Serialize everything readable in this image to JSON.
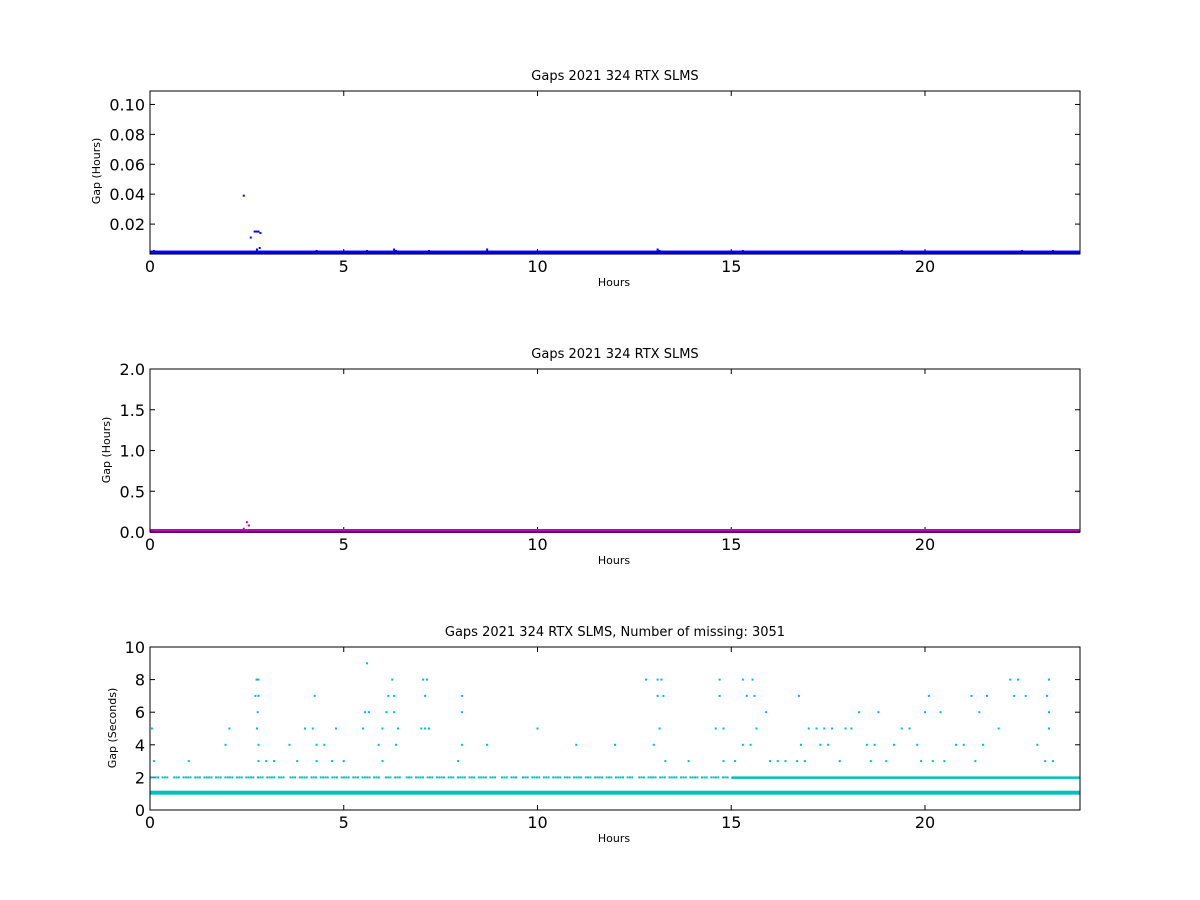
{
  "chart_data": [
    {
      "type": "scatter",
      "title": "Gaps 2021 324 RTX  SLMS",
      "xlabel": "Hours",
      "ylabel": "Gap (Hours)",
      "xlim": [
        0,
        24
      ],
      "ylim": [
        0,
        0.109
      ],
      "xticks": [
        "0",
        "5",
        "10",
        "15",
        "20"
      ],
      "yticks": [
        {
          "v": 0.02,
          "label": "0.02"
        },
        {
          "v": 0.04,
          "label": "0.04"
        },
        {
          "v": 0.06,
          "label": "0.06"
        },
        {
          "v": 0.08,
          "label": "0.08"
        },
        {
          "v": 0.1,
          "label": "0.10"
        }
      ],
      "color": "#0000ff",
      "series": [
        {
          "baseline_y": 0.0003,
          "points": [
            [
              2.42,
              0.039
            ],
            [
              2.6,
              0.011
            ],
            [
              2.7,
              0.015
            ],
            [
              2.75,
              0.015
            ],
            [
              2.8,
              0.015
            ],
            [
              2.85,
              0.014
            ],
            [
              2.83,
              0.004
            ],
            [
              2.76,
              0.003
            ],
            [
              6.3,
              0.003
            ],
            [
              6.35,
              0.002
            ],
            [
              8.7,
              0.003
            ],
            [
              13.1,
              0.003
            ],
            [
              13.15,
              0.002
            ],
            [
              23.3,
              0.002
            ],
            [
              0.1,
              0.002
            ],
            [
              4.3,
              0.002
            ],
            [
              5.6,
              0.002
            ],
            [
              7.2,
              0.002
            ],
            [
              15.3,
              0.002
            ],
            [
              19.4,
              0.002
            ],
            [
              22.5,
              0.002
            ]
          ]
        }
      ]
    },
    {
      "type": "scatter",
      "title": "Gaps 2021 324 RTX  SLMS",
      "xlabel": "Hours",
      "ylabel": "Gap (Hours)",
      "xlim": [
        0,
        24
      ],
      "ylim": [
        0,
        2.0
      ],
      "xticks": [
        "0",
        "5",
        "10",
        "15",
        "20"
      ],
      "yticks": [
        {
          "v": 0.0,
          "label": "0.0"
        },
        {
          "v": 0.5,
          "label": "0.5"
        },
        {
          "v": 1.0,
          "label": "1.0"
        },
        {
          "v": 1.5,
          "label": "1.5"
        },
        {
          "v": 2.0,
          "label": "2.0"
        }
      ],
      "color": "#bf00bf",
      "series": [
        {
          "baseline_y": 0.0,
          "points": [
            [
              2.42,
              0.04
            ],
            [
              2.5,
              0.12
            ],
            [
              2.55,
              0.08
            ],
            [
              2.45,
              0.02
            ]
          ]
        }
      ]
    },
    {
      "type": "scatter",
      "title": "Gaps 2021 324 RTX  SLMS, Number of missing: 3051",
      "xlabel": "Hours",
      "ylabel": "Gap (Seconds)",
      "xlim": [
        0,
        24
      ],
      "ylim": [
        0,
        10
      ],
      "xticks": [
        "0",
        "5",
        "10",
        "15",
        "20"
      ],
      "yticks": [
        {
          "v": 0,
          "label": "0"
        },
        {
          "v": 2,
          "label": "2"
        },
        {
          "v": 4,
          "label": "4"
        },
        {
          "v": 6,
          "label": "6"
        },
        {
          "v": 8,
          "label": "8"
        },
        {
          "v": 10,
          "label": "10"
        }
      ],
      "color": "#00bfbf",
      "series": [
        {
          "baseline_y": 1,
          "band_y": 2,
          "band_start": 15.0,
          "points": [
            [
              0.05,
              5
            ],
            [
              0.1,
              3
            ],
            [
              1.0,
              3
            ],
            [
              1.95,
              4
            ],
            [
              2.05,
              5
            ],
            [
              2.75,
              8
            ],
            [
              2.8,
              8
            ],
            [
              2.72,
              7
            ],
            [
              2.8,
              7
            ],
            [
              2.78,
              6
            ],
            [
              2.76,
              5
            ],
            [
              2.8,
              4
            ],
            [
              2.8,
              3
            ],
            [
              3.0,
              3
            ],
            [
              3.2,
              3
            ],
            [
              3.6,
              4
            ],
            [
              3.8,
              3
            ],
            [
              4.0,
              5
            ],
            [
              4.2,
              5
            ],
            [
              4.25,
              7
            ],
            [
              4.3,
              4
            ],
            [
              4.5,
              4
            ],
            [
              4.3,
              3
            ],
            [
              4.7,
              3
            ],
            [
              4.8,
              5
            ],
            [
              5.0,
              3
            ],
            [
              5.5,
              5
            ],
            [
              5.6,
              9
            ],
            [
              5.55,
              6
            ],
            [
              5.65,
              6
            ],
            [
              5.9,
              4
            ],
            [
              6.0,
              5
            ],
            [
              6.0,
              3
            ],
            [
              6.1,
              6
            ],
            [
              6.15,
              7
            ],
            [
              6.25,
              8
            ],
            [
              6.3,
              7
            ],
            [
              6.35,
              4
            ],
            [
              6.4,
              5
            ],
            [
              6.3,
              6
            ],
            [
              7.05,
              8
            ],
            [
              7.1,
              7
            ],
            [
              7.15,
              8
            ],
            [
              7.1,
              5
            ],
            [
              7.0,
              5
            ],
            [
              7.2,
              5
            ],
            [
              7.95,
              3
            ],
            [
              8.05,
              7
            ],
            [
              8.05,
              6
            ],
            [
              8.05,
              4
            ],
            [
              8.7,
              4
            ],
            [
              10.0,
              5
            ],
            [
              11.0,
              4
            ],
            [
              12.0,
              4
            ],
            [
              12.8,
              8
            ],
            [
              13.0,
              4
            ],
            [
              13.1,
              8
            ],
            [
              13.2,
              8
            ],
            [
              13.1,
              7
            ],
            [
              13.25,
              7
            ],
            [
              13.15,
              5
            ],
            [
              13.3,
              3
            ],
            [
              13.9,
              3
            ],
            [
              14.7,
              8
            ],
            [
              14.7,
              7
            ],
            [
              14.6,
              5
            ],
            [
              14.8,
              5
            ],
            [
              14.8,
              3
            ],
            [
              15.1,
              3
            ],
            [
              15.3,
              8
            ],
            [
              15.55,
              8
            ],
            [
              15.4,
              7
            ],
            [
              15.6,
              7
            ],
            [
              15.3,
              4
            ],
            [
              15.5,
              4
            ],
            [
              15.65,
              5
            ],
            [
              15.9,
              6
            ],
            [
              16.0,
              3
            ],
            [
              16.2,
              3
            ],
            [
              16.4,
              3
            ],
            [
              16.75,
              7
            ],
            [
              16.8,
              4
            ],
            [
              16.7,
              3
            ],
            [
              16.9,
              3
            ],
            [
              17.0,
              5
            ],
            [
              17.2,
              5
            ],
            [
              17.3,
              4
            ],
            [
              17.5,
              4
            ],
            [
              17.4,
              5
            ],
            [
              17.6,
              5
            ],
            [
              17.8,
              3
            ],
            [
              17.95,
              5
            ],
            [
              18.1,
              5
            ],
            [
              18.3,
              6
            ],
            [
              18.5,
              4
            ],
            [
              18.6,
              3
            ],
            [
              18.8,
              6
            ],
            [
              18.7,
              4
            ],
            [
              19.0,
              3
            ],
            [
              19.2,
              4
            ],
            [
              19.4,
              5
            ],
            [
              19.6,
              5
            ],
            [
              19.8,
              4
            ],
            [
              19.9,
              3
            ],
            [
              20.0,
              6
            ],
            [
              20.1,
              7
            ],
            [
              20.2,
              3
            ],
            [
              20.4,
              6
            ],
            [
              20.5,
              3
            ],
            [
              20.8,
              4
            ],
            [
              21.0,
              4
            ],
            [
              21.2,
              7
            ],
            [
              21.3,
              3
            ],
            [
              21.4,
              6
            ],
            [
              21.5,
              4
            ],
            [
              21.6,
              7
            ],
            [
              21.9,
              5
            ],
            [
              22.2,
              8
            ],
            [
              22.3,
              7
            ],
            [
              22.4,
              8
            ],
            [
              22.6,
              7
            ],
            [
              22.9,
              4
            ],
            [
              23.2,
              8
            ],
            [
              23.15,
              7
            ],
            [
              23.2,
              6
            ],
            [
              23.2,
              5
            ],
            [
              23.3,
              3
            ],
            [
              23.1,
              3
            ]
          ]
        }
      ]
    }
  ]
}
